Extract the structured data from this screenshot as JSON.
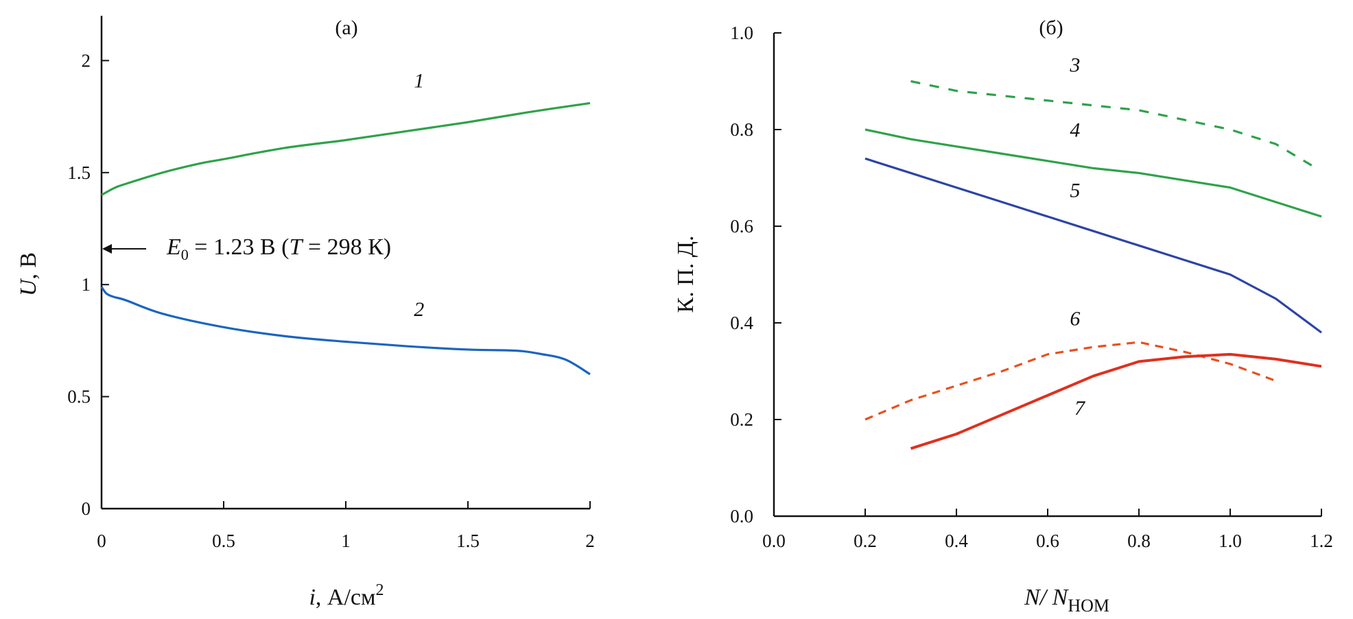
{
  "chart_data": [
    {
      "type": "line",
      "panel_label": "(a)",
      "xlabel": {
        "main": "i",
        "rest": ", А/см",
        "sup": "2"
      },
      "ylabel": {
        "main": "U",
        "rest": ", В"
      },
      "xlim": [
        0,
        2
      ],
      "ylim": [
        0,
        2.2
      ],
      "xticks": [
        0,
        0.5,
        1,
        1.5,
        2
      ],
      "xtick_labels": [
        "0",
        "0.5",
        "1",
        "1.5",
        "2"
      ],
      "yticks": [
        0,
        0.5,
        1,
        1.5,
        2
      ],
      "ytick_labels": [
        "0",
        "0.5",
        "1",
        "1.5",
        "2"
      ],
      "grid": false,
      "annotation": {
        "text_E": "E",
        "text_sub": "0",
        "text_mid": " = 1.23 В (",
        "text_T": "T",
        "text_end": " = 298 К)",
        "value": 1.23,
        "arrow": "points to y-axis at E0"
      },
      "series": [
        {
          "name": "1",
          "color": "#2ea24a",
          "dash": false,
          "label_pos": [
            1.3,
            1.88
          ],
          "x": [
            0,
            0.05,
            0.1,
            0.25,
            0.4,
            0.5,
            0.75,
            1.0,
            1.25,
            1.5,
            1.75,
            2.0
          ],
          "y": [
            1.4,
            1.43,
            1.45,
            1.5,
            1.54,
            1.56,
            1.61,
            1.645,
            1.685,
            1.725,
            1.77,
            1.81
          ]
        },
        {
          "name": "2",
          "color": "#1a65c0",
          "dash": false,
          "label_pos": [
            1.3,
            0.86
          ],
          "x": [
            0,
            0.02,
            0.05,
            0.1,
            0.25,
            0.5,
            0.75,
            1.0,
            1.25,
            1.5,
            1.7,
            1.8,
            1.9,
            2.0
          ],
          "y": [
            0.99,
            0.96,
            0.945,
            0.93,
            0.87,
            0.81,
            0.77,
            0.745,
            0.725,
            0.71,
            0.705,
            0.69,
            0.665,
            0.6
          ]
        }
      ]
    },
    {
      "type": "line",
      "panel_label": "(б)",
      "xlabel": {
        "main": "N/ N",
        "sub": "НОМ"
      },
      "ylabel": "К. П. Д.",
      "xlim": [
        0,
        1.2
      ],
      "ylim": [
        0,
        1.0
      ],
      "xticks": [
        0,
        0.2,
        0.4,
        0.6,
        0.8,
        1.0,
        1.2
      ],
      "xtick_labels": [
        "0.0",
        "0.2",
        "0.4",
        "0.6",
        "0.8",
        "1.0",
        "1.2"
      ],
      "yticks": [
        0,
        0.2,
        0.4,
        0.6,
        0.8,
        1.0
      ],
      "ytick_labels": [
        "0.0",
        "0.2",
        "0.4",
        "0.6",
        "0.8",
        "1.0"
      ],
      "grid": false,
      "series": [
        {
          "name": "3",
          "color": "#2ea24a",
          "dash": true,
          "label_pos": [
            0.66,
            0.92
          ],
          "x": [
            0.3,
            0.4,
            0.5,
            0.6,
            0.7,
            0.8,
            0.9,
            1.0,
            1.1,
            1.18
          ],
          "y": [
            0.9,
            0.88,
            0.87,
            0.86,
            0.85,
            0.84,
            0.82,
            0.8,
            0.77,
            0.725
          ]
        },
        {
          "name": "4",
          "color": "#2ea24a",
          "dash": false,
          "label_pos": [
            0.66,
            0.785
          ],
          "x": [
            0.2,
            0.3,
            0.4,
            0.5,
            0.6,
            0.7,
            0.8,
            0.9,
            1.0,
            1.1,
            1.2
          ],
          "y": [
            0.8,
            0.78,
            0.765,
            0.75,
            0.735,
            0.72,
            0.71,
            0.695,
            0.68,
            0.65,
            0.62
          ]
        },
        {
          "name": "5",
          "color": "#2c44a6",
          "dash": false,
          "label_pos": [
            0.66,
            0.66
          ],
          "x": [
            0.2,
            0.3,
            0.4,
            0.5,
            0.6,
            0.7,
            0.8,
            0.9,
            1.0,
            1.1,
            1.2
          ],
          "y": [
            0.74,
            0.71,
            0.68,
            0.65,
            0.62,
            0.59,
            0.56,
            0.53,
            0.5,
            0.45,
            0.38
          ]
        },
        {
          "name": "6",
          "color": "#e8501e",
          "dash": true,
          "label_pos": [
            0.66,
            0.395
          ],
          "x": [
            0.2,
            0.3,
            0.4,
            0.5,
            0.6,
            0.7,
            0.8,
            0.9,
            1.0,
            1.1
          ],
          "y": [
            0.2,
            0.24,
            0.27,
            0.3,
            0.335,
            0.35,
            0.36,
            0.34,
            0.315,
            0.28
          ]
        },
        {
          "name": "7",
          "color": "#e0301e",
          "dash": false,
          "label_pos": [
            0.67,
            0.21
          ],
          "x": [
            0.3,
            0.4,
            0.5,
            0.6,
            0.7,
            0.8,
            0.9,
            1.0,
            1.1,
            1.2
          ],
          "y": [
            0.14,
            0.17,
            0.21,
            0.25,
            0.29,
            0.32,
            0.33,
            0.335,
            0.325,
            0.31
          ]
        }
      ]
    }
  ]
}
